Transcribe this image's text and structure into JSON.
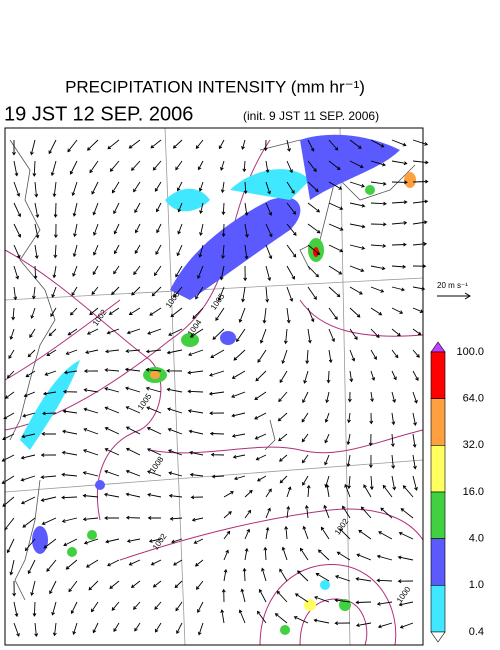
{
  "title": "PRECIPITATION INTENSITY (mm hr⁻¹)",
  "valid_time": "19 JST 12 SEP. 2006",
  "init_time": "(init. 9 JST 11 SEP. 2006)",
  "wind_reference": "20 m s⁻¹",
  "colorbar": {
    "labels": [
      "100.0",
      "64.0",
      "32.0",
      "16.0",
      "4.0",
      "1.0",
      "0.4"
    ],
    "colors": [
      "#ff0000",
      "#ffa040",
      "#ffff60",
      "#40d040",
      "#5a5aff",
      "#40e8ff"
    ]
  },
  "contour_labels": [
    "1006",
    "1004",
    "1005",
    "1002",
    "1005",
    "1008",
    "1002",
    "1002",
    "1000"
  ]
}
